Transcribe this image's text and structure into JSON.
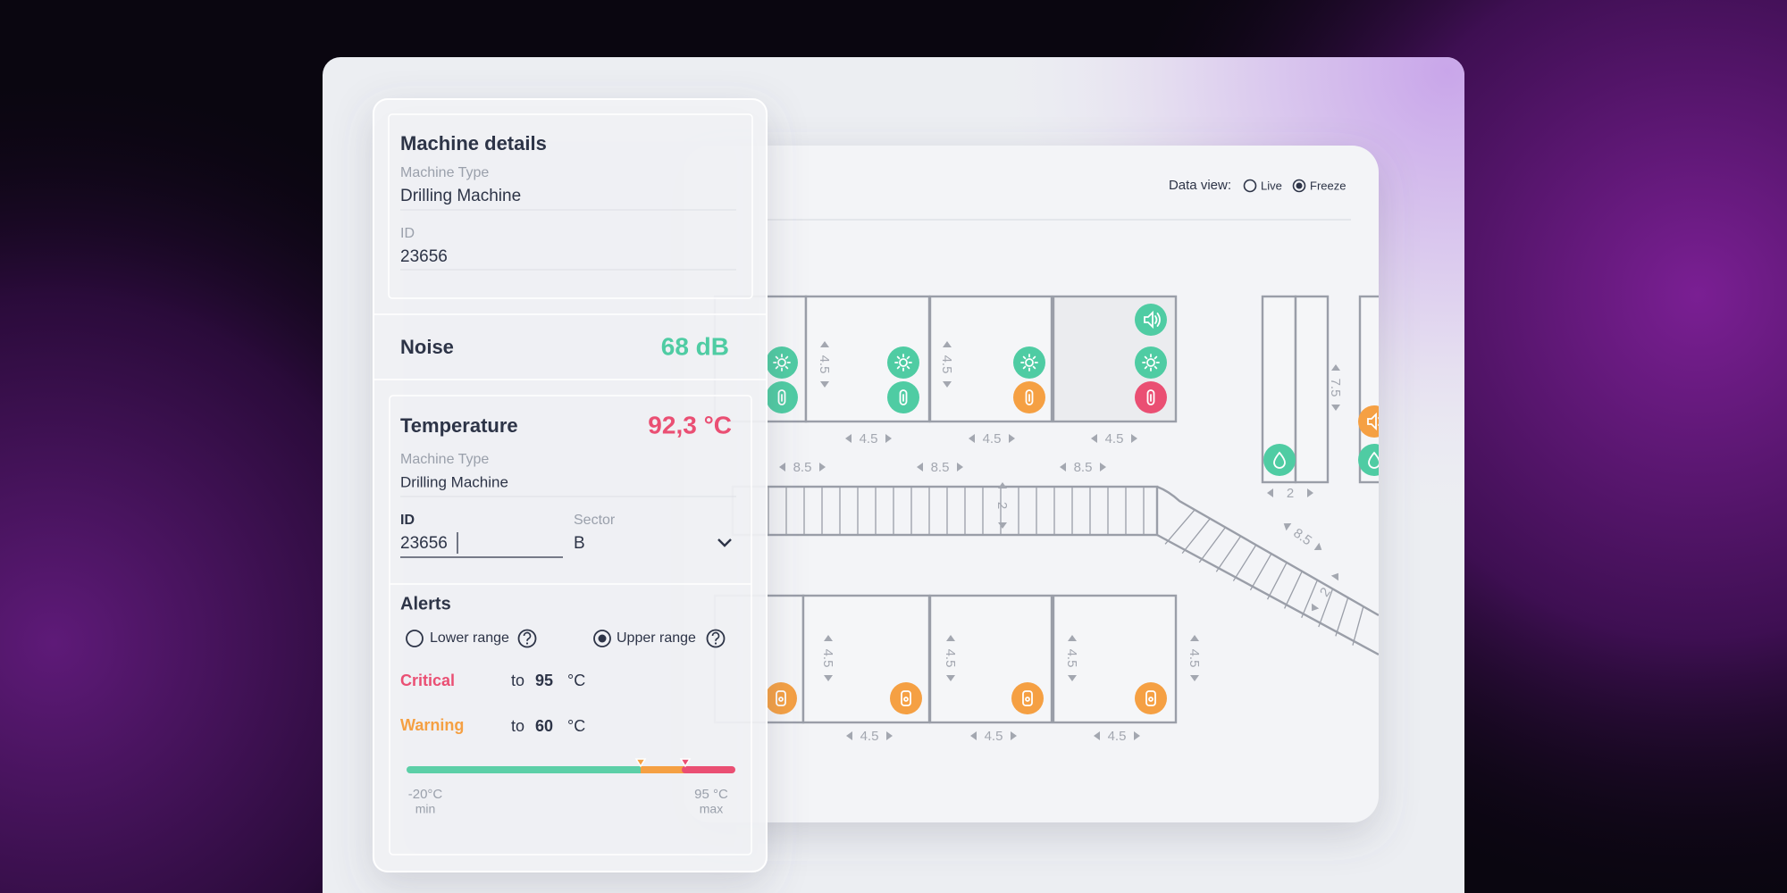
{
  "data_view": {
    "label": "Data view:",
    "options": [
      "Live",
      "Freeze"
    ]
  },
  "machine_details": {
    "title": "Machine details",
    "fields": [
      {
        "label": "Machine Type",
        "value": "Drilling Machine"
      },
      {
        "label": "ID",
        "value": 23656
      }
    ]
  },
  "noise": {
    "label": "Noise",
    "value": "68 dB"
  },
  "temperature": {
    "label": "Temperature",
    "value": "92,3 °C",
    "machine_type": {
      "label": "Machine Type",
      "value": "Drilling Machine"
    },
    "id": {
      "label": "ID",
      "value": 23656
    },
    "sector": {
      "label": "Sector",
      "value": "B"
    }
  },
  "alerts": {
    "title": "Alerts",
    "options": [
      "Lower range",
      "Upper range"
    ],
    "levels": [
      {
        "name": "Critical",
        "to": "to",
        "value": 95,
        "unit": "°C"
      },
      {
        "name": "Warning",
        "to": "to",
        "value": 60,
        "unit": "°C"
      }
    ],
    "range": {
      "min": "-20°C",
      "min_label": "min",
      "max": "95 °C",
      "max_label": "max"
    }
  },
  "floor_plan": {
    "dimensions": [
      4.5,
      4.5,
      4.5,
      4.5,
      4.5,
      8.5,
      8.5,
      8.5,
      2,
      8.5,
      2,
      7.5,
      2,
      4.5,
      4.5,
      4.5,
      4.5,
      4.5,
      4.5,
      4.5
    ]
  }
}
